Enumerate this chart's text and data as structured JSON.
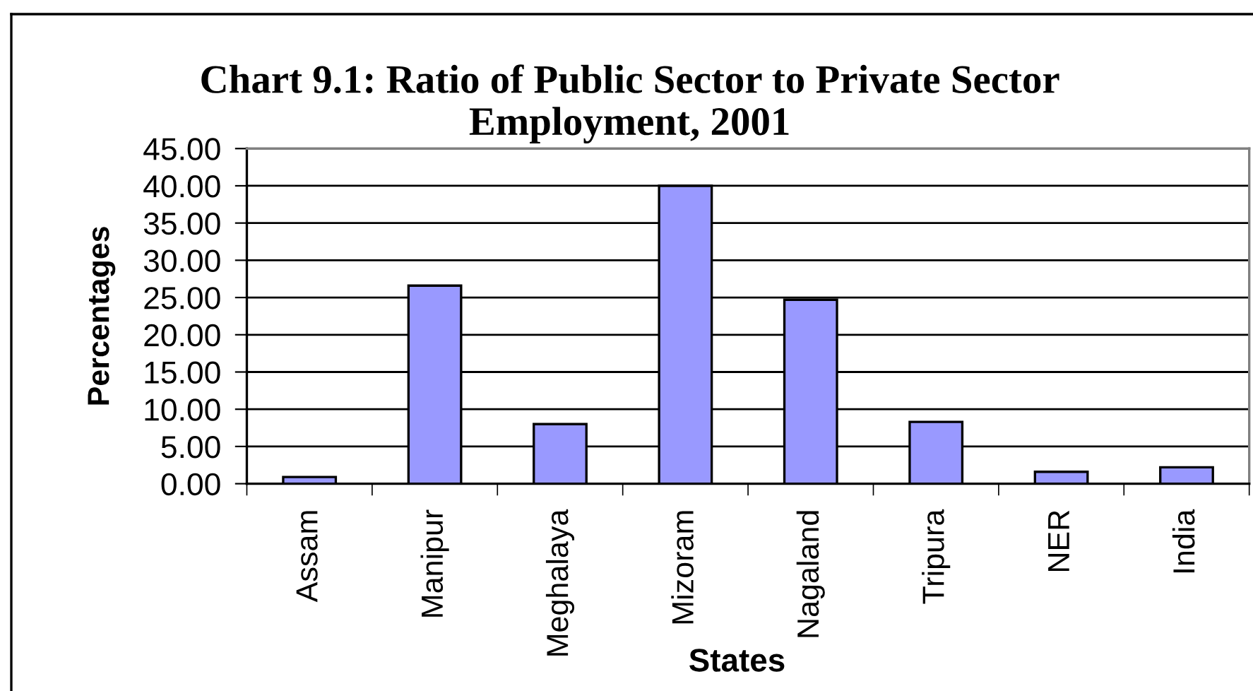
{
  "chart_data": {
    "type": "bar",
    "title": "Chart 9.1: Ratio of Public Sector to Private Sector\nEmployment, 2001",
    "xlabel": "States",
    "ylabel": "Percentages",
    "categories": [
      "Assam",
      "Manipur",
      "Meghalaya",
      "Mizoram",
      "Nagaland",
      "Tripura",
      "NER",
      "India"
    ],
    "values": [
      0.9,
      26.6,
      8.0,
      40.0,
      24.7,
      8.3,
      1.6,
      2.2
    ],
    "color": "#9999ff",
    "ylim": [
      0,
      45
    ],
    "yticks": [
      {
        "value": 0,
        "label": "0.00"
      },
      {
        "value": 5,
        "label": "5.00"
      },
      {
        "value": 10,
        "label": "10.00"
      },
      {
        "value": 15,
        "label": "15.00"
      },
      {
        "value": 20,
        "label": "20.00"
      },
      {
        "value": 25,
        "label": "25.00"
      },
      {
        "value": 30,
        "label": "30.00"
      },
      {
        "value": 35,
        "label": "35.00"
      },
      {
        "value": 40,
        "label": "40.00"
      },
      {
        "value": 45,
        "label": "45.00"
      }
    ],
    "grid": "y",
    "legend": false
  }
}
